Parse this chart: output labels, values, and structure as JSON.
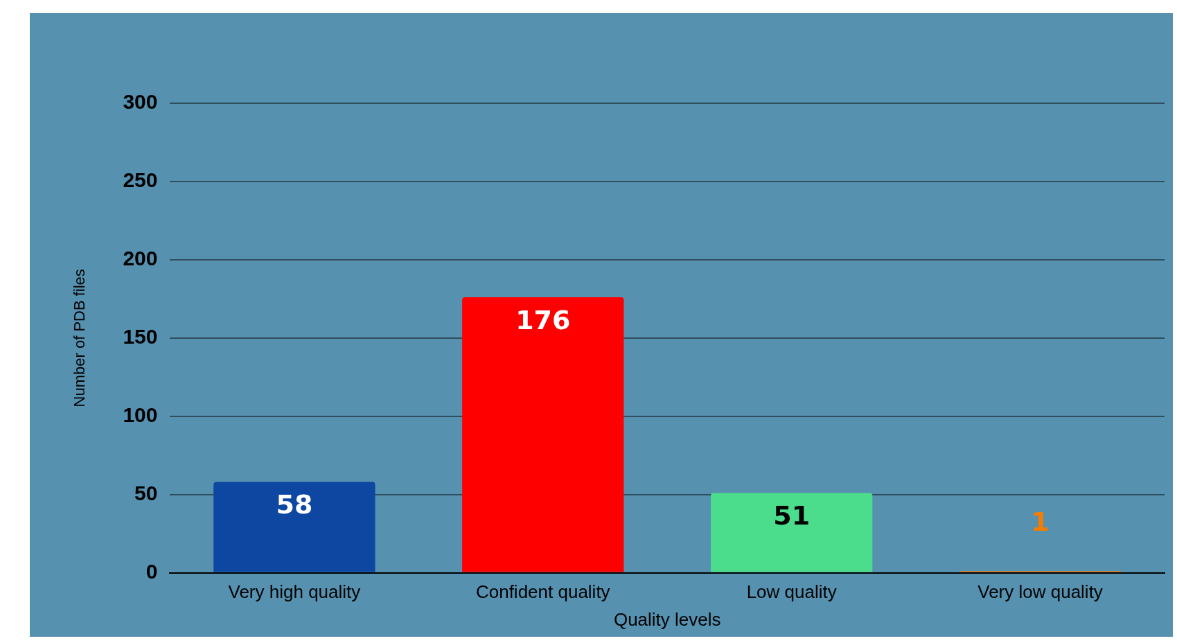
{
  "chart_data": {
    "type": "bar",
    "xlabel": "Quality levels",
    "ylabel": "Number of PDB files",
    "categories": [
      "Very high quality",
      "Confident quality",
      "Low quality",
      "Very low quality"
    ],
    "values": [
      58,
      176,
      51,
      1
    ],
    "colors": [
      "#0d47a1",
      "#ff0000",
      "#4cdd8c",
      "#f57c00"
    ],
    "ylim": [
      0,
      300
    ],
    "yticks": [
      0,
      50,
      100,
      150,
      200,
      250,
      300
    ],
    "grid": "y",
    "data_labels": true
  }
}
